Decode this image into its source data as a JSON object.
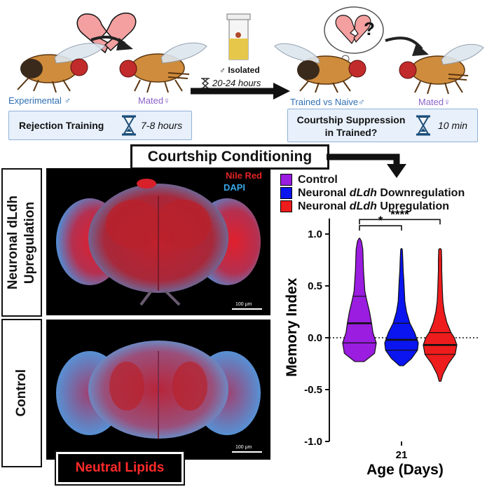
{
  "top_panel": {
    "experimental_label": "Experimental ♂",
    "mated_label_left": "Mated♀",
    "rejection_training_label": "Rejection Training",
    "rejection_training_time": "7-8 hours",
    "isolated_label": "♂ Isolated",
    "isolation_time": "20-24 hours",
    "trained_vs_naive_label": "Trained vs Naive♂",
    "mated_label_right": "Mated♀",
    "courtship_suppression_label_1": "Courtship Suppression",
    "courtship_suppression_label_2": "in Trained?",
    "test_time": "10 min",
    "question_mark": "?"
  },
  "center_title": "Courtship Conditioning",
  "images": {
    "upper_side_label_1": "Neuronal dLdh",
    "upper_side_label_2": "Upregulation",
    "lower_side_label": "Control",
    "stain_1": "Nile Red",
    "stain_2": "DAPI",
    "scale_bar_upper": "100 μm",
    "scale_bar_lower": "100 μm",
    "bottom_label": "Neutral Lipids"
  },
  "legend": [
    {
      "prefix": "Control",
      "gene": "",
      "suffix": "",
      "color": "#9a1de0"
    },
    {
      "prefix": "Neuronal ",
      "gene": "dLdh",
      "suffix": " Downregulation",
      "color": "#0a15f0"
    },
    {
      "prefix": "Neuronal ",
      "gene": "dLdh",
      "suffix": " Upregulation",
      "color": "#ee1c1c"
    }
  ],
  "chart_data": {
    "type": "violin",
    "ylabel": "Memory Index",
    "xlabel": "Age (Days)",
    "x_tick": "21",
    "ylim": [
      -1.0,
      1.15
    ],
    "yticks": [
      "1.0",
      "0.5",
      "0.0",
      "-0.5",
      "-1.0"
    ],
    "ytick_values": [
      1.0,
      0.5,
      0.0,
      -0.5,
      -1.0
    ],
    "zero_line": "dotted",
    "series": [
      {
        "name": "Control",
        "color": "#9a1de0",
        "min": -0.23,
        "max": 0.96,
        "median": 0.14,
        "q1": -0.05,
        "q3": 0.4,
        "profile": [
          [
            -0.23,
            0.28
          ],
          [
            -0.15,
            0.9
          ],
          [
            -0.05,
            1.0
          ],
          [
            0.05,
            0.8
          ],
          [
            0.14,
            0.72
          ],
          [
            0.25,
            0.6
          ],
          [
            0.35,
            0.45
          ],
          [
            0.45,
            0.32
          ],
          [
            0.55,
            0.28
          ],
          [
            0.65,
            0.24
          ],
          [
            0.75,
            0.22
          ],
          [
            0.85,
            0.2
          ],
          [
            0.93,
            0.12
          ],
          [
            0.96,
            0.02
          ]
        ]
      },
      {
        "name": "Neuronal dLdh Downregulation",
        "color": "#0a15f0",
        "min": -0.27,
        "max": 0.86,
        "median": -0.02,
        "q1": -0.12,
        "q3": 0.14,
        "profile": [
          [
            -0.27,
            0.12
          ],
          [
            -0.2,
            0.6
          ],
          [
            -0.12,
            0.95
          ],
          [
            -0.05,
            1.0
          ],
          [
            0.05,
            0.78
          ],
          [
            0.14,
            0.5
          ],
          [
            0.25,
            0.3
          ],
          [
            0.35,
            0.2
          ],
          [
            0.45,
            0.17
          ],
          [
            0.55,
            0.14
          ],
          [
            0.65,
            0.1
          ],
          [
            0.75,
            0.08
          ],
          [
            0.85,
            0.05
          ],
          [
            0.86,
            0.02
          ]
        ]
      },
      {
        "name": "Neuronal dLdh Upregulation",
        "color": "#ee1c1c",
        "min": -0.42,
        "max": 0.86,
        "median": -0.07,
        "q1": -0.16,
        "q3": 0.05,
        "profile": [
          [
            -0.42,
            0.05
          ],
          [
            -0.35,
            0.18
          ],
          [
            -0.25,
            0.5
          ],
          [
            -0.16,
            0.9
          ],
          [
            -0.07,
            1.0
          ],
          [
            0.0,
            0.85
          ],
          [
            0.05,
            0.65
          ],
          [
            0.15,
            0.4
          ],
          [
            0.25,
            0.25
          ],
          [
            0.35,
            0.17
          ],
          [
            0.45,
            0.14
          ],
          [
            0.55,
            0.12
          ],
          [
            0.65,
            0.1
          ],
          [
            0.75,
            0.1
          ],
          [
            0.85,
            0.08
          ],
          [
            0.86,
            0.02
          ]
        ]
      }
    ],
    "significance": [
      {
        "from": 0,
        "to": 1,
        "label": "*",
        "y": 1.08
      },
      {
        "from": 0,
        "to": 2,
        "label": "****",
        "y": 1.14
      }
    ]
  }
}
